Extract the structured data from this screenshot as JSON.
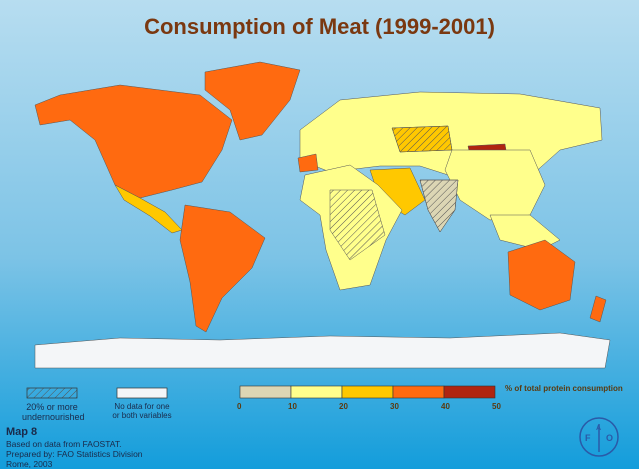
{
  "title": "Consumption of Meat  (1999-2001)",
  "colors": {
    "c0_10": "#dcd6b4",
    "c10_20": "#ffff8c",
    "c20_30": "#ffc800",
    "c30_40": "#ff6a10",
    "c40_50": "#b02410",
    "nodata": "#f4f6f8"
  },
  "legend": {
    "hatched_label_1": "20% or more",
    "hatched_label_2": "undernourished",
    "nodata_label_1": "No data for one",
    "nodata_label_2": "or both variables",
    "ticks": [
      "0",
      "10",
      "20",
      "30",
      "40",
      "50"
    ],
    "unit": "%  of total protein consumption"
  },
  "footer": {
    "map_no": "Map 8",
    "line1": "Based on data from FAOSTAT.",
    "line2": "Prepared by: FAO Statistics Division",
    "line3": "Rome, 2003"
  },
  "logo": {
    "text": "FAO"
  }
}
